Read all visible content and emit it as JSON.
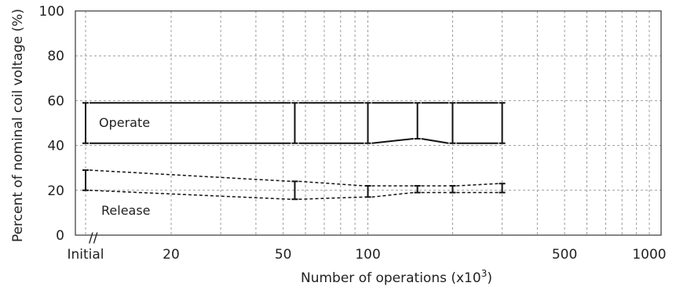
{
  "chart_data": {
    "type": "line",
    "title": "",
    "xlabel_main": "Number of operations (x10",
    "xlabel_sup": "3",
    "xlabel_close": ")",
    "ylabel": "Percent of nominal coil voltage (%)",
    "x_scale": "log",
    "ylim": [
      0,
      100
    ],
    "y_ticks": [
      0,
      20,
      40,
      60,
      80,
      100
    ],
    "x_ticks": [
      {
        "value": "initial",
        "label": "Initial"
      },
      {
        "value": 20,
        "label": "20"
      },
      {
        "value": 50,
        "label": "50"
      },
      {
        "value": 100,
        "label": "100"
      },
      {
        "value": 500,
        "label": "500"
      },
      {
        "value": 1000,
        "label": "1000"
      }
    ],
    "x_grid": [
      20,
      30,
      40,
      50,
      60,
      70,
      80,
      90,
      100,
      200,
      300,
      400,
      500,
      600,
      700,
      800,
      900,
      1000
    ],
    "axis_break_label": "//",
    "grid": true,
    "annotations": {
      "operate": "Operate",
      "release": "Release"
    },
    "series": [
      {
        "name": "Operate",
        "style": "solid",
        "points": [
          {
            "x": "initial",
            "min": 41,
            "max": 59
          },
          {
            "x": 55,
            "min": 41,
            "max": 59
          },
          {
            "x": 100,
            "min": 41,
            "max": 59
          },
          {
            "x": 150,
            "min": 43,
            "max": 59
          },
          {
            "x": 200,
            "min": 41,
            "max": 59
          },
          {
            "x": 300,
            "min": 41,
            "max": 59
          }
        ]
      },
      {
        "name": "Release",
        "style": "dashed",
        "points": [
          {
            "x": "initial",
            "min": 20,
            "max": 29
          },
          {
            "x": 55,
            "min": 16,
            "max": 24
          },
          {
            "x": 100,
            "min": 17,
            "max": 22
          },
          {
            "x": 150,
            "min": 19,
            "max": 22
          },
          {
            "x": 200,
            "min": 19,
            "max": 22
          },
          {
            "x": 300,
            "min": 19,
            "max": 23
          }
        ]
      }
    ]
  }
}
